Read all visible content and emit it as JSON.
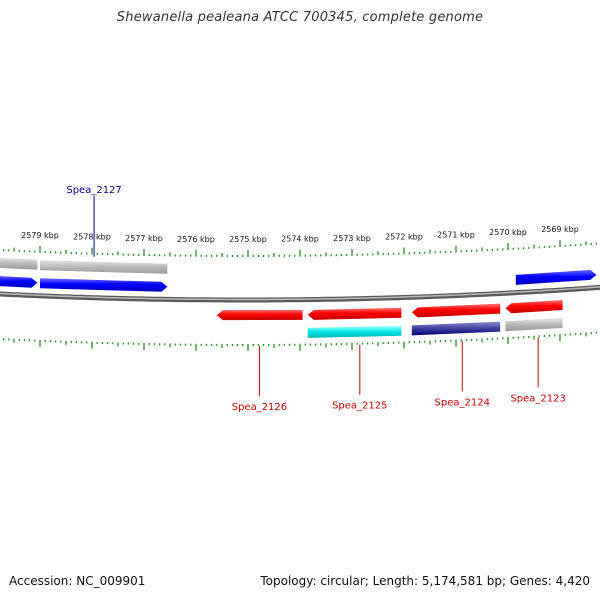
{
  "title": "Shewanella pealeana ATCC 700345, complete genome",
  "footer": {
    "accession": "Accession: NC_009901",
    "summary": "Topology: circular; Length: 5,174,581 bp; Genes: 4,420"
  },
  "colors": {
    "forward_gene": "#0000ff",
    "reverse_gene": "#ff0000",
    "forward_label": "#00008b",
    "reverse_label": "#cc0000",
    "backbone": "#888888",
    "tick": "#228b22"
  },
  "chart_data": {
    "type": "genome-map",
    "axis_direction": "descending-left-to-right",
    "tick_labels": [
      {
        "kbp": 2579,
        "label": "2579 kbp"
      },
      {
        "kbp": 2578,
        "label": "2578 kbp"
      },
      {
        "kbp": 2577,
        "label": "2577 kbp"
      },
      {
        "kbp": 2576,
        "label": "2576 kbp"
      },
      {
        "kbp": 2575,
        "label": "2575 kbp"
      },
      {
        "kbp": 2574,
        "label": "2574 kbp"
      },
      {
        "kbp": 2573,
        "label": "2573 kbp"
      },
      {
        "kbp": 2572,
        "label": "2572 kbp"
      },
      {
        "kbp": 2571,
        "label": "2571 kbp"
      },
      {
        "kbp": 2570,
        "label": "2570 kbp"
      },
      {
        "kbp": 2569,
        "label": "2569 kbp"
      }
    ],
    "gene_labels": [
      {
        "name": "Spea_2127",
        "strand": "forward",
        "kbp": 2577.96
      },
      {
        "name": "Spea_2126",
        "strand": "reverse",
        "kbp": 2574.78
      },
      {
        "name": "Spea_2125",
        "strand": "reverse",
        "kbp": 2572.85
      },
      {
        "name": "Spea_2124",
        "strand": "reverse",
        "kbp": 2570.88
      },
      {
        "name": "Spea_2123",
        "strand": "reverse",
        "kbp": 2569.42
      }
    ],
    "features": [
      {
        "track": "forward-cds",
        "start_kbp": 2579.9,
        "end_kbp": 2579.05,
        "color": "#0000ff"
      },
      {
        "track": "forward-cds",
        "start_kbp": 2579.0,
        "end_kbp": 2576.55,
        "color": "#0000ff"
      },
      {
        "track": "forward-cds",
        "start_kbp": 2569.85,
        "end_kbp": 2568.3,
        "color": "#0000ff"
      },
      {
        "track": "forward-rna",
        "start_kbp": 2579.9,
        "end_kbp": 2579.05,
        "color": "#aaaaaa"
      },
      {
        "track": "forward-rna",
        "start_kbp": 2579.0,
        "end_kbp": 2576.55,
        "color": "#aaaaaa"
      },
      {
        "track": "reverse-cds",
        "start_kbp": 2575.6,
        "end_kbp": 2573.95,
        "color": "#ff0000"
      },
      {
        "track": "reverse-cds",
        "start_kbp": 2573.85,
        "end_kbp": 2572.05,
        "color": "#ff0000"
      },
      {
        "track": "reverse-cds",
        "start_kbp": 2571.85,
        "end_kbp": 2570.15,
        "color": "#ff0000"
      },
      {
        "track": "reverse-cds",
        "start_kbp": 2570.05,
        "end_kbp": 2568.95,
        "color": "#ff0000"
      },
      {
        "track": "reverse-rna",
        "start_kbp": 2573.85,
        "end_kbp": 2572.05,
        "color": "#00e5e5"
      },
      {
        "track": "reverse-rna",
        "start_kbp": 2571.85,
        "end_kbp": 2570.15,
        "color": "#4040a0"
      },
      {
        "track": "reverse-rna",
        "start_kbp": 2570.05,
        "end_kbp": 2568.95,
        "color": "#aaaaaa"
      }
    ]
  }
}
